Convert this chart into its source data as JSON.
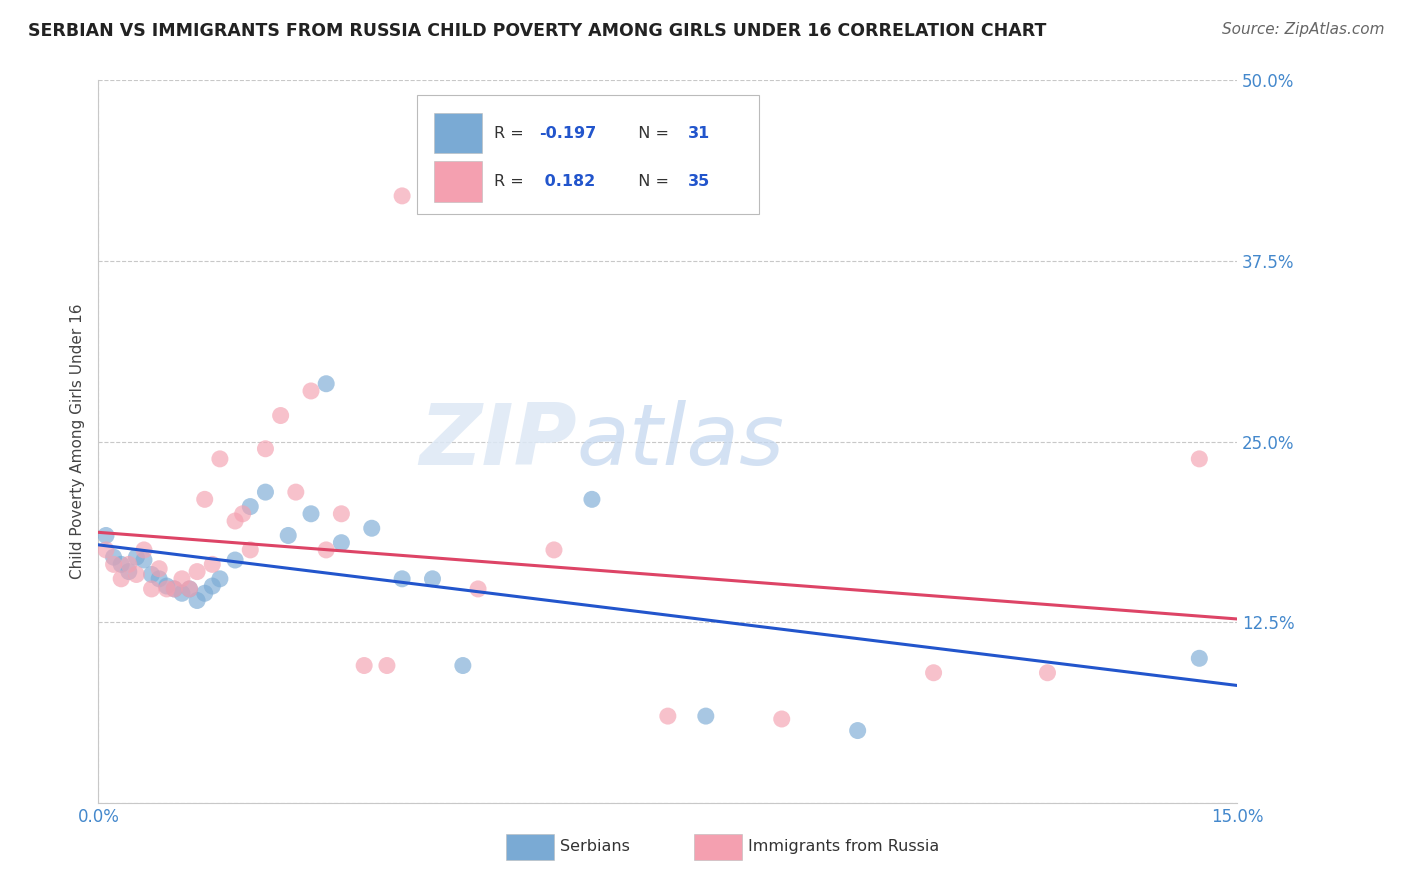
{
  "title": "SERBIAN VS IMMIGRANTS FROM RUSSIA CHILD POVERTY AMONG GIRLS UNDER 16 CORRELATION CHART",
  "source": "Source: ZipAtlas.com",
  "ylabel": "Child Poverty Among Girls Under 16",
  "xlim": [
    0.0,
    0.15
  ],
  "ylim": [
    0.0,
    0.5
  ],
  "yticks": [
    0.0,
    0.125,
    0.25,
    0.375,
    0.5
  ],
  "ytick_labels": [
    "",
    "12.5%",
    "25.0%",
    "37.5%",
    "50.0%"
  ],
  "grid_color": "#c8c8c8",
  "watermark_zip": "ZIP",
  "watermark_atlas": "atlas",
  "R_serbian": -0.197,
  "N_serbian": 31,
  "R_russia": 0.182,
  "N_russia": 35,
  "serbian_color": "#7aaad4",
  "russia_color": "#f4a0b0",
  "serbian_line_color": "#2255cc",
  "russia_line_color": "#dd4466",
  "serbian_scatter_x": [
    0.001,
    0.002,
    0.003,
    0.004,
    0.005,
    0.006,
    0.007,
    0.008,
    0.009,
    0.01,
    0.011,
    0.012,
    0.013,
    0.014,
    0.015,
    0.016,
    0.018,
    0.02,
    0.022,
    0.025,
    0.028,
    0.03,
    0.032,
    0.036,
    0.04,
    0.044,
    0.048,
    0.065,
    0.08,
    0.1,
    0.145
  ],
  "serbian_scatter_y": [
    0.185,
    0.17,
    0.165,
    0.16,
    0.17,
    0.168,
    0.158,
    0.155,
    0.15,
    0.148,
    0.145,
    0.148,
    0.14,
    0.145,
    0.15,
    0.155,
    0.168,
    0.205,
    0.215,
    0.185,
    0.2,
    0.29,
    0.18,
    0.19,
    0.155,
    0.155,
    0.095,
    0.21,
    0.06,
    0.05,
    0.1
  ],
  "russia_scatter_x": [
    0.001,
    0.002,
    0.003,
    0.004,
    0.005,
    0.006,
    0.007,
    0.008,
    0.009,
    0.01,
    0.011,
    0.012,
    0.013,
    0.014,
    0.015,
    0.016,
    0.018,
    0.019,
    0.02,
    0.022,
    0.024,
    0.026,
    0.028,
    0.03,
    0.032,
    0.035,
    0.038,
    0.04,
    0.05,
    0.06,
    0.075,
    0.09,
    0.11,
    0.125,
    0.145
  ],
  "russia_scatter_y": [
    0.175,
    0.165,
    0.155,
    0.165,
    0.158,
    0.175,
    0.148,
    0.162,
    0.148,
    0.148,
    0.155,
    0.148,
    0.16,
    0.21,
    0.165,
    0.238,
    0.195,
    0.2,
    0.175,
    0.245,
    0.268,
    0.215,
    0.285,
    0.175,
    0.2,
    0.095,
    0.095,
    0.42,
    0.148,
    0.175,
    0.06,
    0.058,
    0.09,
    0.09,
    0.238
  ],
  "background_color": "#ffffff",
  "title_fontsize": 12.5,
  "source_fontsize": 11,
  "axis_label_fontsize": 11,
  "tick_label_color": "#4488cc",
  "tick_label_fontsize": 12,
  "legend_entry_color_serbian": "#7aaad4",
  "legend_entry_color_russia": "#f4a0b0",
  "legend_text_color_R": "#333333",
  "legend_text_color_N": "#2255cc"
}
